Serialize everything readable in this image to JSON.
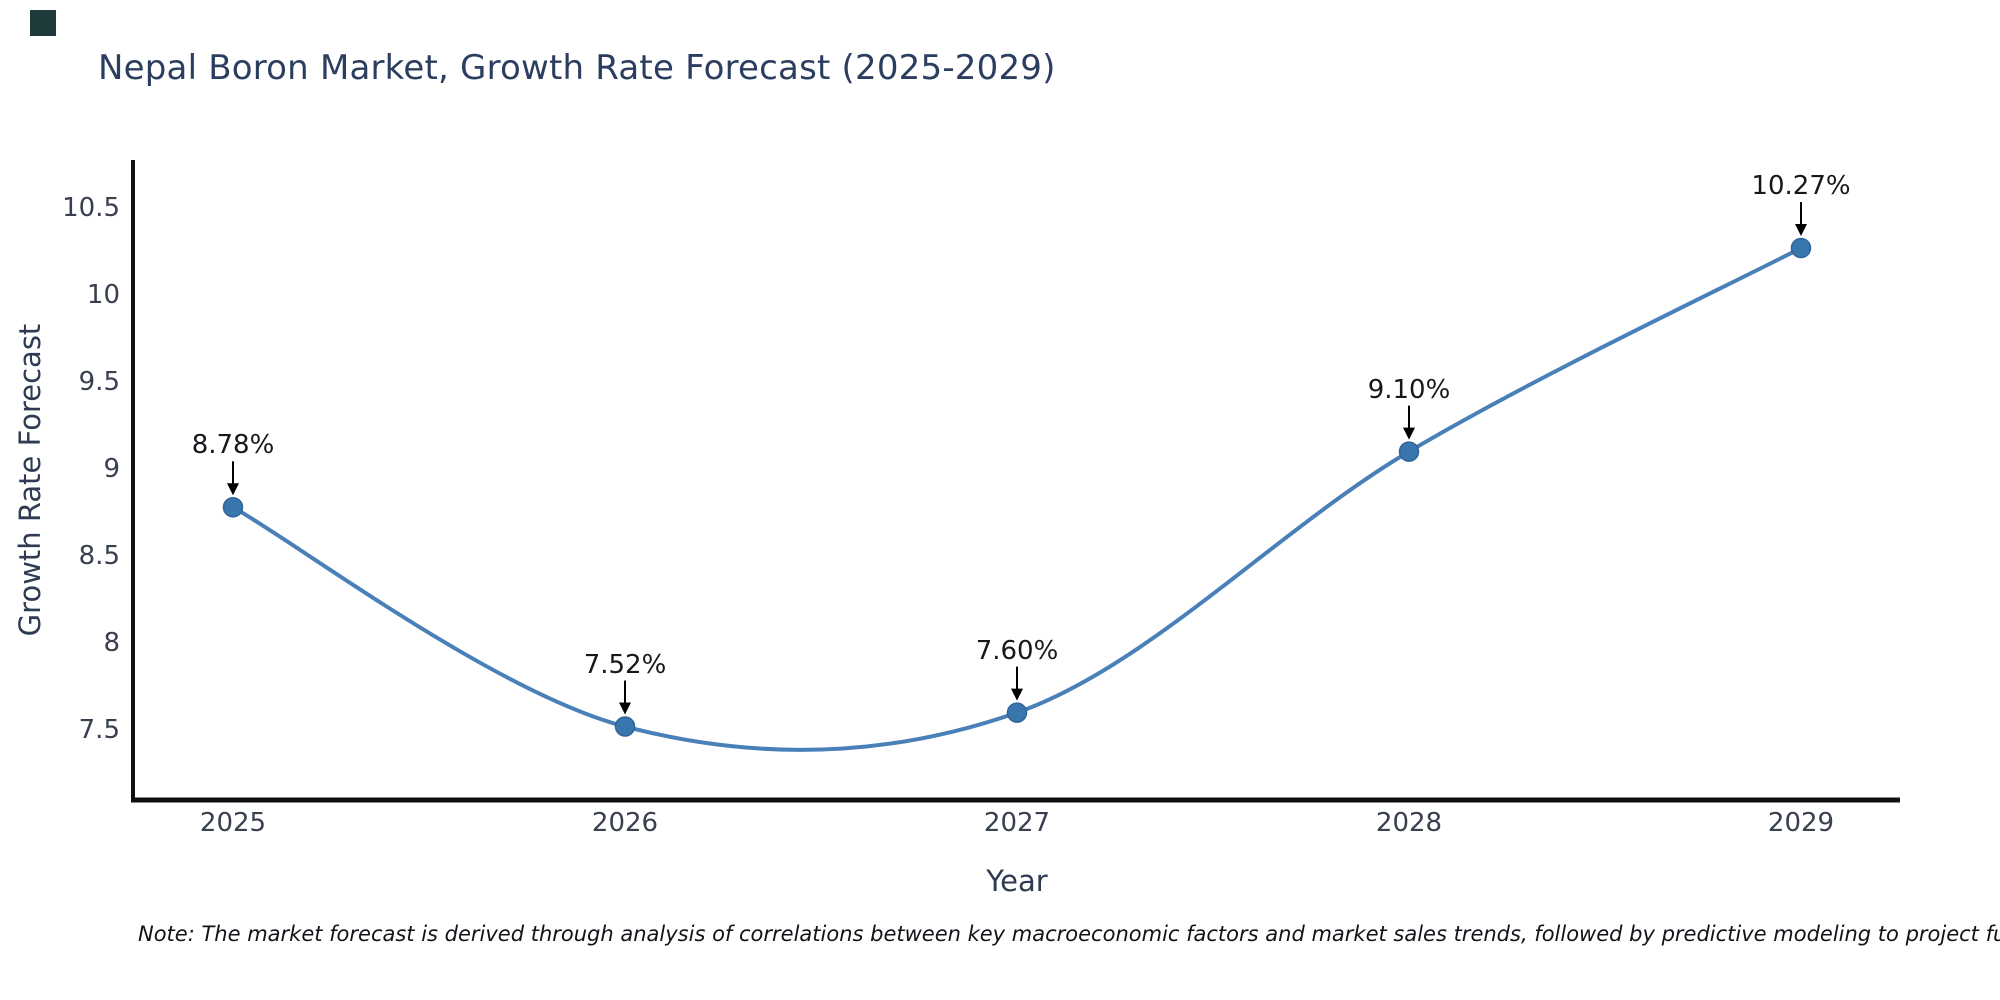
{
  "logo": {
    "color": "#1e3a3a"
  },
  "title": "Nepal Boron Market, Growth Rate Forecast (2025-2029)",
  "note": "Note: The market forecast is derived through analysis of correlations between key macroeconomic factors and market sales trends, followed by predictive modeling to project future sal",
  "chart_data": {
    "type": "line",
    "title": "Nepal Boron Market, Growth Rate Forecast (2025-2029)",
    "xlabel": "Year",
    "ylabel": "Growth Rate Forecast",
    "categories": [
      "2025",
      "2026",
      "2027",
      "2028",
      "2029"
    ],
    "series": [
      {
        "name": "Growth Rate Forecast",
        "values": [
          8.78,
          7.52,
          7.6,
          9.1,
          10.27
        ],
        "point_labels": [
          "8.78%",
          "7.52%",
          "7.60%",
          "9.10%",
          "10.27%"
        ]
      }
    ],
    "yticks": [
      "10.5",
      "10",
      "9.5",
      "9",
      "8.5",
      "8",
      "7.5"
    ],
    "ytick_values": [
      10.5,
      10,
      9.5,
      9,
      8.5,
      8,
      7.5
    ],
    "ylim": [
      7.02,
      10.79
    ],
    "grid": false,
    "legend_position": "none",
    "line_style": "spline",
    "annotation_arrows": true,
    "colors": {
      "line": "#4a80b8",
      "marker": "#3a76ae",
      "marker_edge": "#2f6399",
      "axis": "#111111",
      "arrow": "#000000"
    }
  }
}
